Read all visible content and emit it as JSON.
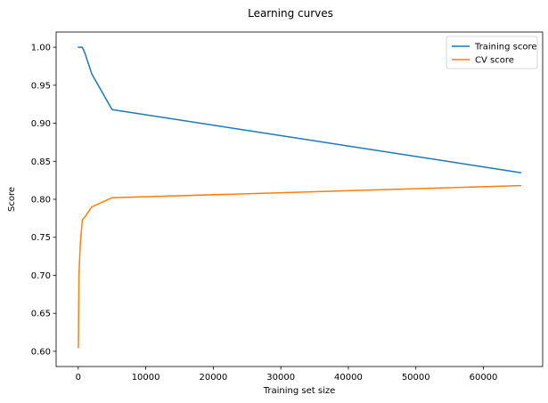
{
  "chart_data": {
    "type": "line",
    "title": "Learning curves",
    "xlabel": "Training set size",
    "ylabel": "Score",
    "xlim": [
      -3275,
      68775
    ],
    "ylim": [
      0.58,
      1.02
    ],
    "xticks": [
      0,
      10000,
      20000,
      30000,
      40000,
      50000,
      60000
    ],
    "xtick_labels": [
      "0",
      "10000",
      "20000",
      "30000",
      "40000",
      "50000",
      "60000"
    ],
    "yticks": [
      0.6,
      0.65,
      0.7,
      0.75,
      0.8,
      0.85,
      0.9,
      0.95,
      1.0
    ],
    "ytick_labels": [
      "0.60",
      "0.65",
      "0.70",
      "0.75",
      "0.80",
      "0.85",
      "0.90",
      "0.95",
      "1.00"
    ],
    "grid": false,
    "legend_position": "top-right",
    "series": [
      {
        "name": "Training score",
        "color": "#1f77b4",
        "x": [
          10,
          30,
          100,
          300,
          600,
          1000,
          2000,
          5000,
          65536
        ],
        "y": [
          1.0,
          1.0,
          1.0,
          1.0,
          1.0,
          0.992,
          0.965,
          0.918,
          0.835
        ]
      },
      {
        "name": "CV score",
        "color": "#ff7f0e",
        "x": [
          10,
          30,
          100,
          300,
          600,
          1000,
          2000,
          5000,
          65536
        ],
        "y": [
          0.605,
          0.62,
          0.7,
          0.74,
          0.773,
          0.777,
          0.79,
          0.802,
          0.818
        ]
      }
    ]
  }
}
